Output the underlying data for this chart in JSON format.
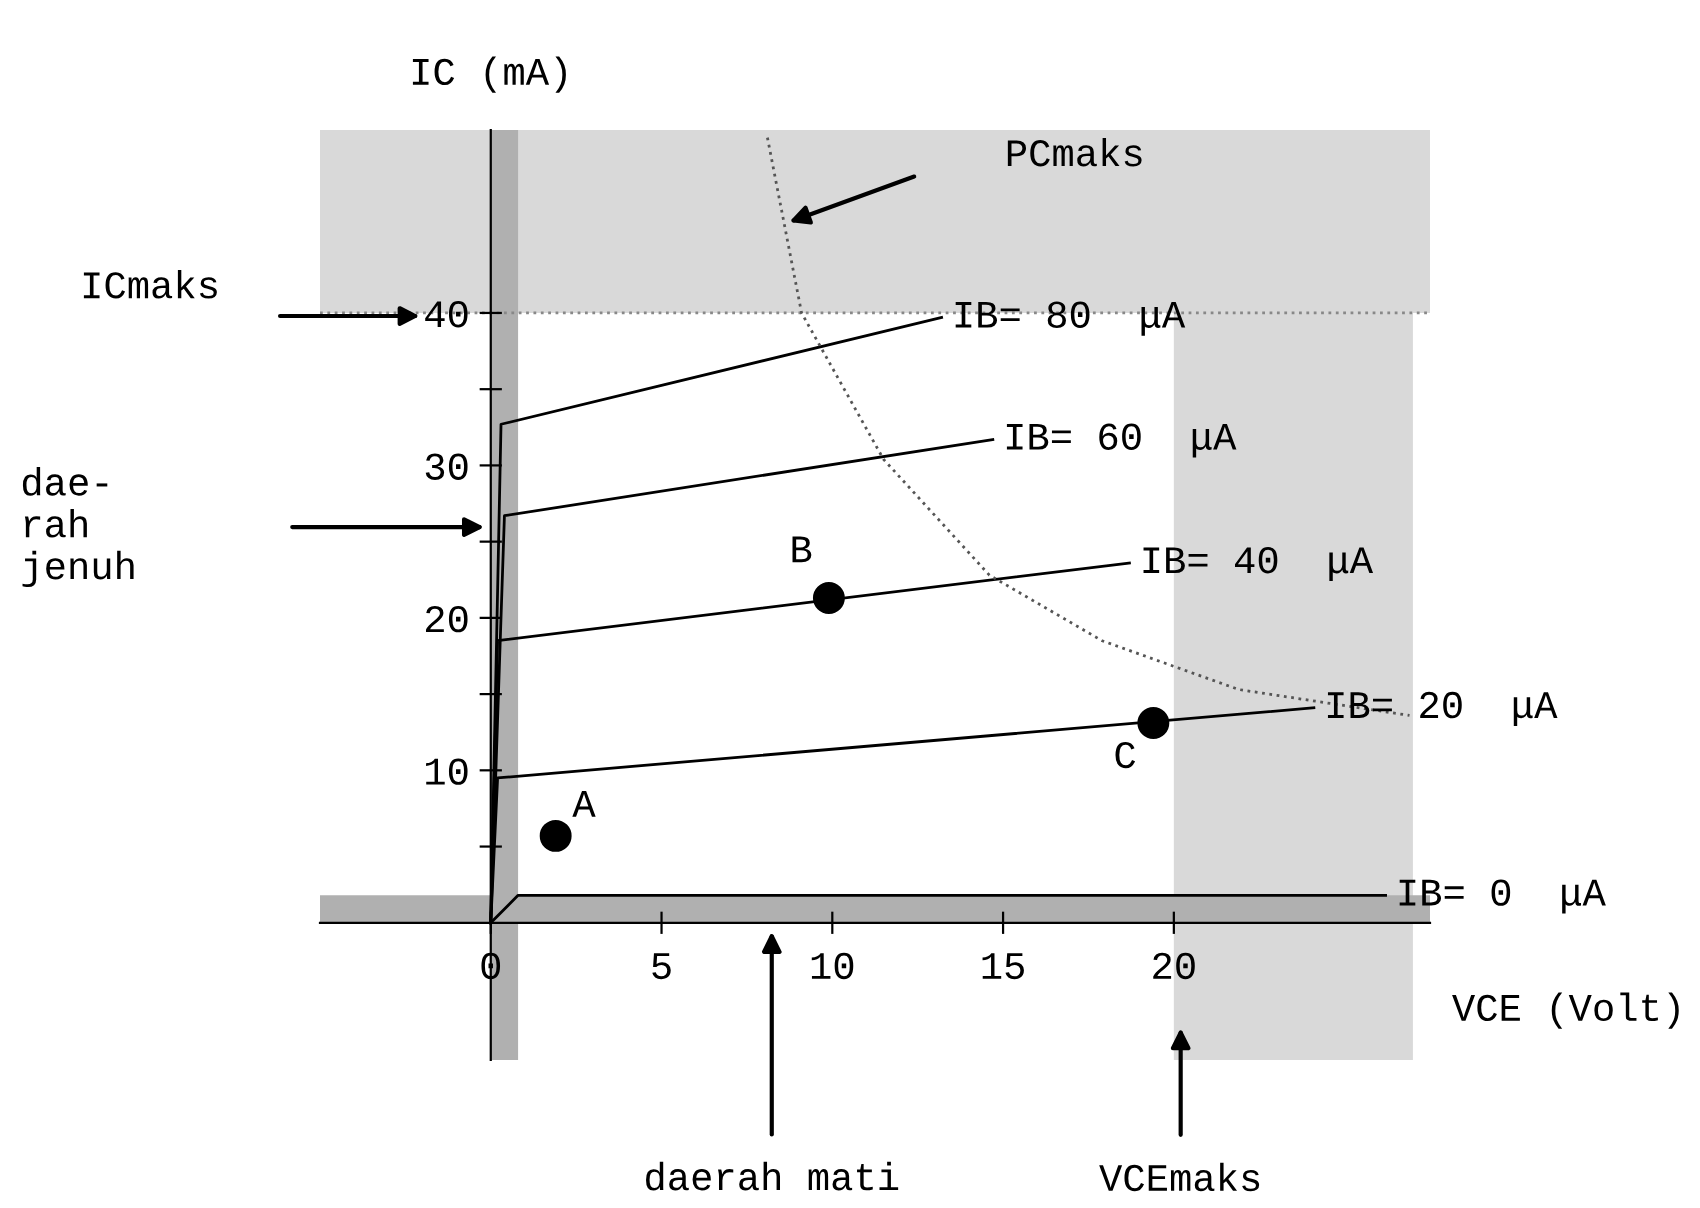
{
  "chart_data": {
    "type": "line",
    "xlabel": "VCE (Volt)",
    "ylabel": "IC (mA)",
    "xlim": [
      -5,
      27.5
    ],
    "ylim": [
      -9,
      52
    ],
    "xticks": [
      0,
      5,
      10,
      15,
      20
    ],
    "yticks": [
      {
        "value": 5,
        "label": null
      },
      10,
      {
        "value": 15,
        "label": null
      },
      20,
      {
        "value": 25,
        "label": null
      },
      30,
      {
        "value": 35,
        "label": null
      },
      40
    ],
    "grid": false,
    "legend": false,
    "marker": "none",
    "line_style": "solid",
    "series": [
      {
        "name": "IB= 80  μA",
        "color": "#000000",
        "x": [
          0,
          0.3,
          13.2
        ],
        "values": [
          0,
          32.7,
          39.7
        ]
      },
      {
        "name": "IB= 60  μA",
        "color": "#000000",
        "x": [
          0,
          0.4,
          14.7
        ],
        "values": [
          0,
          26.7,
          31.7
        ]
      },
      {
        "name": "IB= 40  μA",
        "color": "#000000",
        "x": [
          0,
          0.2,
          18.7
        ],
        "values": [
          0,
          18.5,
          23.6
        ]
      },
      {
        "name": "IB= 20  μA",
        "color": "#000000",
        "x": [
          0,
          0.2,
          24.1
        ],
        "values": [
          0,
          9.5,
          14.1
        ]
      },
      {
        "name": "IB= 0  μA",
        "color": "#000000",
        "x": [
          0,
          0.8,
          26.2
        ],
        "values": [
          0,
          1.8,
          1.8
        ]
      },
      {
        "type": "line",
        "line_style": "dotted",
        "color": "#555555",
        "x": [
          8.1,
          9.1,
          11.5,
          14.6,
          17.9,
          21.9,
          26.9
        ],
        "values": [
          51.5,
          40,
          30.4,
          22.8,
          18.5,
          15.3,
          13.6
        ]
      },
      {
        "type": "scatter",
        "marker": "circle",
        "color": "#000000",
        "x": [
          1.9,
          9.9,
          19.4
        ],
        "values": [
          5.7,
          21.3,
          13.1
        ]
      }
    ],
    "bands": [
      {
        "axis": "y",
        "from": 40,
        "to": 52,
        "color": "#d9d9d9"
      },
      {
        "axis": "x",
        "from": 20,
        "to": 27,
        "color": "#d9d9d9"
      },
      {
        "axis": "x",
        "from": 0,
        "to": 0.8,
        "color": "#b0b0b0"
      },
      {
        "axis": "y",
        "from": 0,
        "to": 1.8,
        "color": "#b0b0b0"
      }
    ],
    "ref_lines": [
      {
        "axis": "y",
        "value": 40,
        "line_style": "dotted",
        "color": "#888888"
      }
    ],
    "annotations": [
      {
        "text": "A",
        "x": 1.9,
        "y": 5.7
      },
      {
        "text": "B",
        "x": 9.9,
        "y": 21.3
      },
      {
        "text": "C",
        "x": 19.4,
        "y": 13.1
      },
      "PCmaks",
      "ICmaks",
      "dae-\nrah\njenuh",
      "daerah mati",
      {
        "text": "VCEmaks",
        "x": 20.2,
        "y": -6.9
      }
    ]
  }
}
